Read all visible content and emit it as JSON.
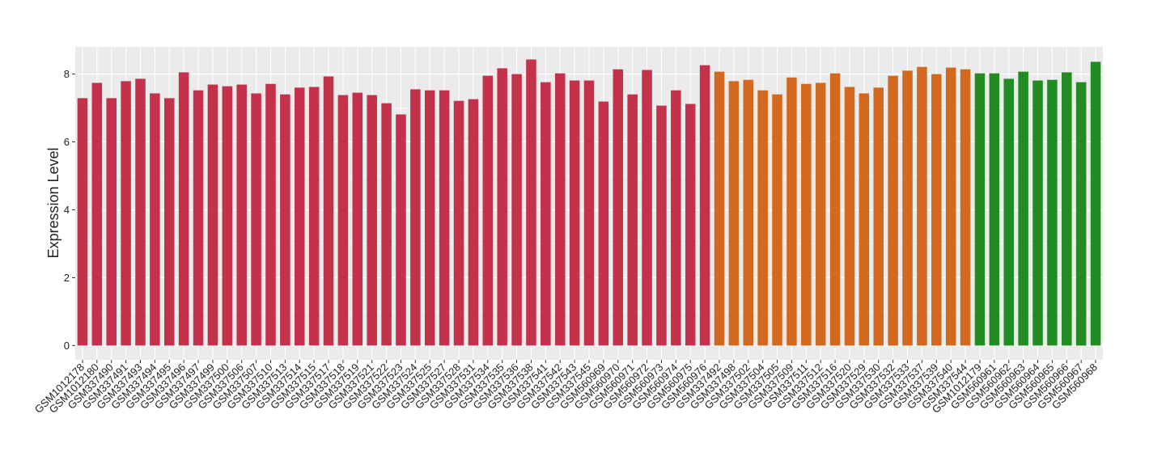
{
  "chart_data": {
    "type": "bar",
    "y_label": "Expression Level",
    "categories": [
      "GSM1012178",
      "GSM1012180",
      "GSM337490",
      "GSM337491",
      "GSM337493",
      "GSM337494",
      "GSM337495",
      "GSM337496",
      "GSM337497",
      "GSM337499",
      "GSM337500",
      "GSM337506",
      "GSM337507",
      "GSM337510",
      "GSM337513",
      "GSM337514",
      "GSM337515",
      "GSM337517",
      "GSM337518",
      "GSM337519",
      "GSM337521",
      "GSM337522",
      "GSM337523",
      "GSM337524",
      "GSM337525",
      "GSM337527",
      "GSM337528",
      "GSM337531",
      "GSM337534",
      "GSM337535",
      "GSM337536",
      "GSM337538",
      "GSM337541",
      "GSM337542",
      "GSM337543",
      "GSM337545",
      "GSM560969",
      "GSM560970",
      "GSM560971",
      "GSM560972",
      "GSM560973",
      "GSM560974",
      "GSM560975",
      "GSM560976",
      "GSM337492",
      "GSM337498",
      "GSM337502",
      "GSM337504",
      "GSM337505",
      "GSM337509",
      "GSM337511",
      "GSM337512",
      "GSM337516",
      "GSM337520",
      "GSM337529",
      "GSM337530",
      "GSM337532",
      "GSM337533",
      "GSM337537",
      "GSM337539",
      "GSM337540",
      "GSM337544",
      "GSM1012179",
      "GSM560961",
      "GSM560962",
      "GSM560963",
      "GSM560964",
      "GSM560965",
      "GSM560966",
      "GSM560967",
      "GSM560968"
    ],
    "values": [
      7.29,
      7.74,
      7.29,
      7.79,
      7.86,
      7.43,
      7.29,
      8.05,
      7.52,
      7.69,
      7.64,
      7.69,
      7.43,
      7.71,
      7.4,
      7.6,
      7.62,
      7.93,
      7.38,
      7.45,
      7.38,
      7.14,
      6.81,
      7.55,
      7.52,
      7.52,
      7.21,
      7.26,
      7.95,
      8.17,
      8.0,
      8.43,
      7.76,
      8.02,
      7.81,
      7.81,
      7.19,
      8.14,
      7.4,
      8.12,
      7.07,
      7.52,
      7.12,
      8.26,
      8.07,
      7.79,
      7.83,
      7.52,
      7.4,
      7.9,
      7.71,
      7.74,
      8.02,
      7.62,
      7.43,
      7.6,
      7.95,
      8.1,
      8.21,
      8.0,
      8.19,
      8.14,
      8.02,
      8.02,
      7.86,
      8.07,
      7.81,
      7.83,
      8.05,
      7.76,
      8.36
    ],
    "colors": [
      "#c3314a",
      "#c3314a",
      "#c3314a",
      "#c3314a",
      "#c3314a",
      "#c3314a",
      "#c3314a",
      "#c3314a",
      "#c3314a",
      "#c3314a",
      "#c3314a",
      "#c3314a",
      "#c3314a",
      "#c3314a",
      "#c3314a",
      "#c3314a",
      "#c3314a",
      "#c3314a",
      "#c3314a",
      "#c3314a",
      "#c3314a",
      "#c3314a",
      "#c3314a",
      "#c3314a",
      "#c3314a",
      "#c3314a",
      "#c3314a",
      "#c3314a",
      "#c3314a",
      "#c3314a",
      "#c3314a",
      "#c3314a",
      "#c3314a",
      "#c3314a",
      "#c3314a",
      "#c3314a",
      "#c3314a",
      "#c3314a",
      "#c3314a",
      "#c3314a",
      "#c3314a",
      "#c3314a",
      "#c3314a",
      "#c3314a",
      "#d2691e",
      "#d2691e",
      "#d2691e",
      "#d2691e",
      "#d2691e",
      "#d2691e",
      "#d2691e",
      "#d2691e",
      "#d2691e",
      "#d2691e",
      "#d2691e",
      "#d2691e",
      "#d2691e",
      "#d2691e",
      "#d2691e",
      "#d2691e",
      "#d2691e",
      "#d2691e",
      "#228b22",
      "#228b22",
      "#228b22",
      "#228b22",
      "#228b22",
      "#228b22",
      "#228b22",
      "#228b22",
      "#228b22"
    ],
    "ylim": [
      -0.42,
      8.8
    ],
    "yticks": [
      0,
      2,
      4,
      6,
      8
    ],
    "grid": true
  }
}
